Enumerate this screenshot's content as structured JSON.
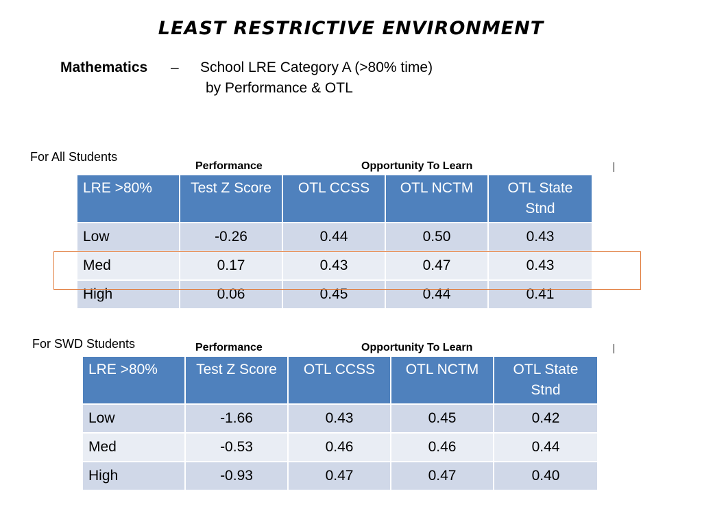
{
  "title": "LEAST RESTRICTIVE ENVIRONMENT",
  "subtitle": {
    "subject": "Mathematics",
    "separator": "–",
    "line1": "School LRE Category A (>80% time)",
    "line2": "by Performance & OTL"
  },
  "tables": [
    {
      "group_label": "For All Students",
      "column_groups": {
        "performance": "Performance",
        "otl": "Opportunity To Learn"
      },
      "headers": [
        "LRE >80%",
        "Test Z Score",
        "OTL CCSS",
        "OTL NCTM",
        "OTL State Stnd"
      ],
      "rows": [
        [
          "Low",
          "-0.26",
          "0.44",
          "0.50",
          "0.43"
        ],
        [
          "Med",
          "0.17",
          "0.43",
          "0.47",
          "0.43"
        ],
        [
          "High",
          "0.06",
          "0.45",
          "0.44",
          "0.41"
        ]
      ]
    },
    {
      "group_label": "For SWD Students",
      "column_groups": {
        "performance": "Performance",
        "otl": "Opportunity To Learn"
      },
      "headers": [
        "LRE >80%",
        "Test Z Score",
        "OTL CCSS",
        "OTL NCTM",
        "OTL State Stnd"
      ],
      "rows": [
        [
          "Low",
          "-1.66",
          "0.43",
          "0.45",
          "0.42"
        ],
        [
          "Med",
          "-0.53",
          "0.46",
          "0.46",
          "0.44"
        ],
        [
          "High",
          "-0.93",
          "0.47",
          "0.47",
          "0.40"
        ]
      ]
    }
  ],
  "colors": {
    "header_bg": "#4f81bd",
    "row_odd": "#d0d8e8",
    "row_even": "#e9edf4",
    "highlight_border": "#e07a3a"
  }
}
